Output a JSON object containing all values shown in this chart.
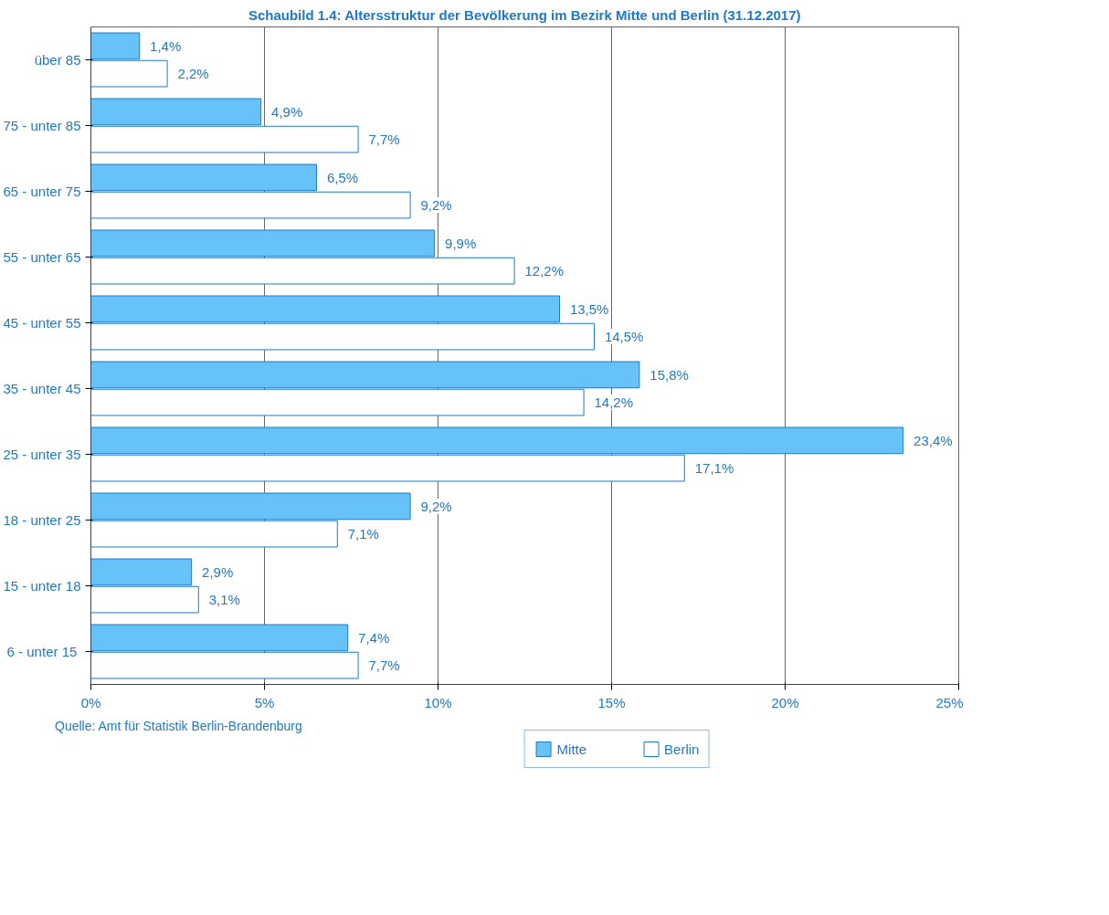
{
  "chart_data": {
    "type": "bar",
    "orientation": "horizontal",
    "title": "Schaubild 1.4: Altersstruktur der Bevölkerung im Bezirk Mitte und Berlin (31.12.2017)",
    "categories": [
      "über 85",
      "75 - unter 85",
      "65 - unter 75",
      "55 - unter 65",
      "45 - unter 55",
      "35 - unter 45",
      "25 - unter 35",
      "18 - unter 25",
      "15 - unter 18",
      "6  - unter 15"
    ],
    "series": [
      {
        "name": "Mitte",
        "color": "#66c2f7",
        "values": [
          1.4,
          4.9,
          6.5,
          9.9,
          13.5,
          15.8,
          23.4,
          9.2,
          2.9,
          7.4
        ],
        "value_labels": [
          "1,4%",
          "4,9%",
          "6,5%",
          "9,9%",
          "13,5%",
          "15,8%",
          "23,4%",
          "9,2%",
          "2,9%",
          "7,4%"
        ]
      },
      {
        "name": "Berlin",
        "color": "#ffffff",
        "values": [
          2.2,
          7.7,
          9.2,
          12.2,
          14.5,
          14.2,
          17.1,
          7.1,
          3.1,
          7.7
        ],
        "value_labels": [
          "2,2%",
          "7,7%",
          "9,2%",
          "12,2%",
          "14,5%",
          "14,2%",
          "17,1%",
          "7,1%",
          "3,1%",
          "7,7%"
        ]
      }
    ],
    "xlim": [
      0,
      25
    ],
    "xticks": [
      {
        "value": 0,
        "label": "0%"
      },
      {
        "value": 5,
        "label": "5%"
      },
      {
        "value": 10,
        "label": "10%"
      },
      {
        "value": 15,
        "label": "15%"
      },
      {
        "value": 20,
        "label": "20%"
      },
      {
        "value": 25,
        "label": "25%"
      }
    ],
    "grid": "x",
    "legend": "bottom",
    "annotations": [
      "Quelle: Amt für Statistik Berlin-Brandenburg"
    ]
  }
}
